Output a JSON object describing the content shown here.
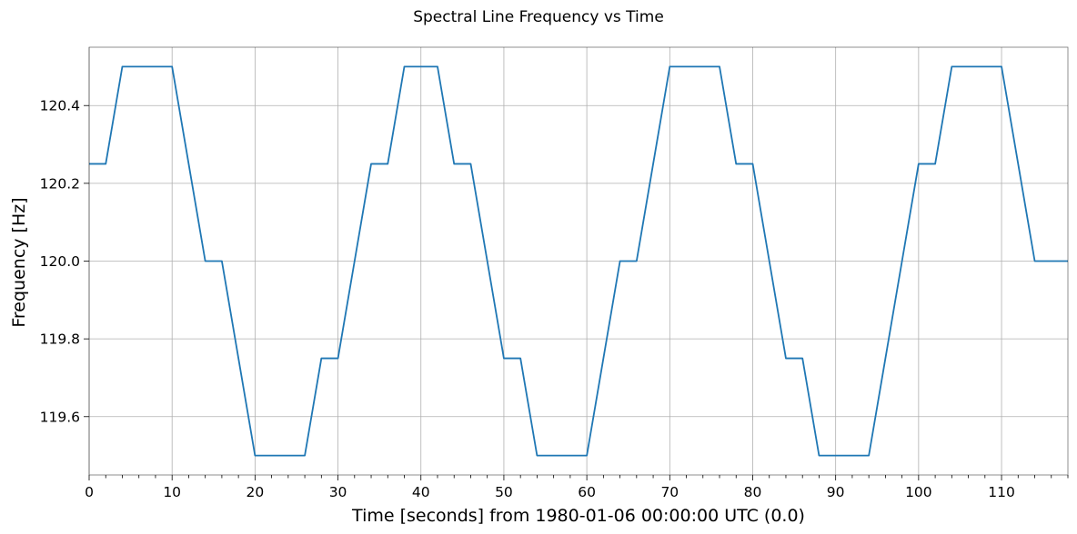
{
  "chart_data": {
    "type": "line",
    "title": "Spectral Line Frequency vs Time",
    "xlabel": "Time [seconds] from 1980-01-06 00:00:00 UTC (0.0)",
    "ylabel": "Frequency [Hz]",
    "xlim": [
      0,
      118
    ],
    "ylim": [
      119.45,
      120.55
    ],
    "xticks": [
      0,
      10,
      20,
      30,
      40,
      50,
      60,
      70,
      80,
      90,
      100,
      110
    ],
    "xtick_labels": [
      "0",
      "10",
      "20",
      "30",
      "40",
      "50",
      "60",
      "70",
      "80",
      "90",
      "100",
      "110"
    ],
    "yticks": [
      119.6,
      119.8,
      120.0,
      120.2,
      120.4
    ],
    "ytick_labels": [
      "119.6",
      "119.8",
      "120.0",
      "120.2",
      "120.4"
    ],
    "grid": true,
    "series": [
      {
        "color": "#1f77b4",
        "x": [
          0,
          2,
          4,
          6,
          8,
          10,
          12,
          14,
          16,
          18,
          20,
          22,
          24,
          26,
          28,
          30,
          32,
          34,
          36,
          38,
          40,
          42,
          44,
          46,
          48,
          50,
          52,
          54,
          56,
          58,
          60,
          62,
          64,
          66,
          68,
          70,
          72,
          74,
          76,
          78,
          80,
          82,
          84,
          86,
          88,
          90,
          92,
          94,
          96,
          98,
          100,
          102,
          104,
          106,
          108,
          110,
          112,
          114,
          116,
          118
        ],
        "y": [
          120.25,
          120.25,
          120.5,
          120.5,
          120.5,
          120.5,
          120.25,
          120.0,
          120.0,
          119.75,
          119.5,
          119.5,
          119.5,
          119.5,
          119.75,
          119.75,
          120.0,
          120.25,
          120.25,
          120.5,
          120.5,
          120.5,
          120.25,
          120.25,
          120.0,
          119.75,
          119.75,
          119.5,
          119.5,
          119.5,
          119.5,
          119.75,
          120.0,
          120.0,
          120.25,
          120.5,
          120.5,
          120.5,
          120.5,
          120.25,
          120.25,
          120.0,
          119.75,
          119.75,
          119.5,
          119.5,
          119.5,
          119.5,
          119.75,
          120.0,
          120.25,
          120.25,
          120.5,
          120.5,
          120.5,
          120.5,
          120.25,
          120.0,
          120.0,
          120.0
        ]
      }
    ]
  }
}
